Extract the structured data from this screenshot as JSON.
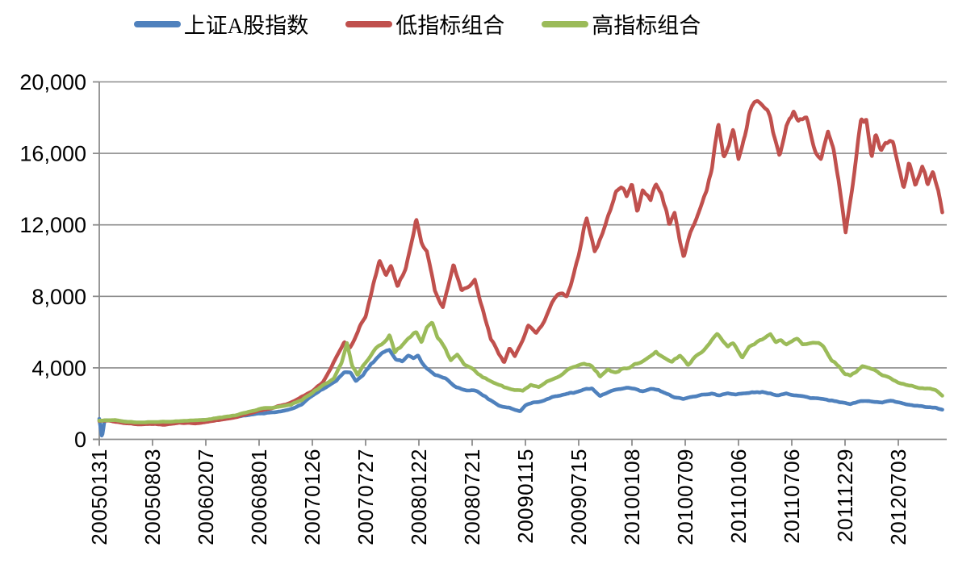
{
  "legend": {
    "items": [
      {
        "label": "上证A股指数",
        "color": "#4F81BD"
      },
      {
        "label": "低指标组合",
        "color": "#C0504D"
      },
      {
        "label": "高指标组合",
        "color": "#9BBB59"
      }
    ]
  },
  "colors": {
    "grid": "#8C8C8C",
    "axis": "#8C8C8C",
    "text": "#000000",
    "background": "#FFFFFF"
  },
  "chart_data": {
    "type": "line",
    "title": "",
    "grid": "horizontal",
    "legend_position": "top",
    "y_axis": {
      "range": [
        0,
        20000
      ],
      "ticks": [
        0,
        4000,
        8000,
        12000,
        16000,
        20000
      ],
      "tick_labels": [
        "0",
        "4,000",
        "8,000",
        "12,000",
        "16,000",
        "20,000"
      ]
    },
    "x_axis": {
      "tick_labels": [
        "20050131",
        "20050803",
        "20060207",
        "20060801",
        "20070126",
        "20070727",
        "20080122",
        "20080721",
        "20090115",
        "20090715",
        "20100108",
        "20100709",
        "20110106",
        "20110706",
        "20111229",
        "20120703"
      ],
      "unit_note": "series x values are in half-year tick units: 0 = 20050131, 15 = 20120703, data extends to ~15.83 (late 2012)"
    },
    "series": [
      {
        "name": "上证A股指数",
        "color": "#4F81BD",
        "points": [
          [
            0,
            1150
          ],
          [
            0.05,
            120
          ],
          [
            0.1,
            1060
          ],
          [
            0.3,
            1050
          ],
          [
            0.5,
            980
          ],
          [
            0.7,
            930
          ],
          [
            1,
            950
          ],
          [
            1.3,
            920
          ],
          [
            1.6,
            990
          ],
          [
            2,
            1080
          ],
          [
            2.4,
            1200
          ],
          [
            2.8,
            1350
          ],
          [
            3,
            1450
          ],
          [
            3.3,
            1500
          ],
          [
            3.6,
            1700
          ],
          [
            3.8,
            1950
          ],
          [
            4,
            2450
          ],
          [
            4.2,
            2800
          ],
          [
            4.45,
            3300
          ],
          [
            4.6,
            3750
          ],
          [
            4.72,
            3700
          ],
          [
            4.82,
            3250
          ],
          [
            4.95,
            3600
          ],
          [
            5.1,
            4200
          ],
          [
            5.3,
            4800
          ],
          [
            5.45,
            5050
          ],
          [
            5.57,
            4450
          ],
          [
            5.68,
            4350
          ],
          [
            5.8,
            4700
          ],
          [
            5.9,
            4550
          ],
          [
            5.98,
            4700
          ],
          [
            6.1,
            4100
          ],
          [
            6.3,
            3600
          ],
          [
            6.5,
            3400
          ],
          [
            6.7,
            2900
          ],
          [
            6.9,
            2750
          ],
          [
            7.1,
            2700
          ],
          [
            7.3,
            2250
          ],
          [
            7.5,
            1900
          ],
          [
            7.7,
            1750
          ],
          [
            7.9,
            1570
          ],
          [
            8,
            1900
          ],
          [
            8.15,
            2050
          ],
          [
            8.3,
            2150
          ],
          [
            8.5,
            2350
          ],
          [
            8.7,
            2500
          ],
          [
            8.9,
            2600
          ],
          [
            9.1,
            2800
          ],
          [
            9.25,
            2870
          ],
          [
            9.4,
            2450
          ],
          [
            9.6,
            2700
          ],
          [
            9.75,
            2800
          ],
          [
            9.9,
            2900
          ],
          [
            10.05,
            2800
          ],
          [
            10.2,
            2650
          ],
          [
            10.35,
            2820
          ],
          [
            10.5,
            2780
          ],
          [
            10.65,
            2550
          ],
          [
            10.8,
            2350
          ],
          [
            10.97,
            2250
          ],
          [
            11.15,
            2420
          ],
          [
            11.3,
            2470
          ],
          [
            11.5,
            2560
          ],
          [
            11.65,
            2480
          ],
          [
            11.8,
            2560
          ],
          [
            11.95,
            2500
          ],
          [
            12.1,
            2560
          ],
          [
            12.3,
            2660
          ],
          [
            12.45,
            2640
          ],
          [
            12.6,
            2540
          ],
          [
            12.75,
            2490
          ],
          [
            12.9,
            2550
          ],
          [
            13.05,
            2500
          ],
          [
            13.2,
            2440
          ],
          [
            13.35,
            2340
          ],
          [
            13.5,
            2300
          ],
          [
            13.65,
            2220
          ],
          [
            13.8,
            2150
          ],
          [
            13.95,
            2060
          ],
          [
            14.1,
            2000
          ],
          [
            14.25,
            2110
          ],
          [
            14.4,
            2160
          ],
          [
            14.55,
            2100
          ],
          [
            14.7,
            2060
          ],
          [
            14.85,
            2160
          ],
          [
            15,
            2060
          ],
          [
            15.15,
            1960
          ],
          [
            15.3,
            1880
          ],
          [
            15.45,
            1850
          ],
          [
            15.6,
            1800
          ],
          [
            15.72,
            1750
          ],
          [
            15.83,
            1660
          ]
        ]
      },
      {
        "name": "低指标组合",
        "color": "#C0504D",
        "points": [
          [
            0,
            1020
          ],
          [
            0.2,
            1040
          ],
          [
            0.5,
            900
          ],
          [
            0.8,
            830
          ],
          [
            1,
            870
          ],
          [
            1.2,
            820
          ],
          [
            1.5,
            930
          ],
          [
            1.8,
            900
          ],
          [
            2,
            960
          ],
          [
            2.3,
            1100
          ],
          [
            2.6,
            1270
          ],
          [
            3,
            1600
          ],
          [
            3.3,
            1800
          ],
          [
            3.5,
            1950
          ],
          [
            3.8,
            2350
          ],
          [
            4,
            2700
          ],
          [
            4.2,
            3200
          ],
          [
            4.45,
            4600
          ],
          [
            4.6,
            5400
          ],
          [
            4.7,
            5100
          ],
          [
            4.9,
            6300
          ],
          [
            5,
            6900
          ],
          [
            5.1,
            8200
          ],
          [
            5.26,
            10100
          ],
          [
            5.38,
            9200
          ],
          [
            5.48,
            9800
          ],
          [
            5.6,
            8600
          ],
          [
            5.75,
            9600
          ],
          [
            5.85,
            10900
          ],
          [
            5.95,
            12350
          ],
          [
            6.05,
            11000
          ],
          [
            6.15,
            10700
          ],
          [
            6.3,
            8300
          ],
          [
            6.45,
            7400
          ],
          [
            6.55,
            8600
          ],
          [
            6.65,
            9800
          ],
          [
            6.8,
            8300
          ],
          [
            6.95,
            8500
          ],
          [
            7.05,
            8900
          ],
          [
            7.2,
            7200
          ],
          [
            7.35,
            5600
          ],
          [
            7.5,
            4800
          ],
          [
            7.6,
            4350
          ],
          [
            7.7,
            5100
          ],
          [
            7.8,
            4700
          ],
          [
            7.95,
            5600
          ],
          [
            8.05,
            6400
          ],
          [
            8.2,
            5900
          ],
          [
            8.35,
            6600
          ],
          [
            8.5,
            7700
          ],
          [
            8.65,
            8300
          ],
          [
            8.78,
            8000
          ],
          [
            8.9,
            9100
          ],
          [
            9,
            10300
          ],
          [
            9.15,
            12400
          ],
          [
            9.3,
            10600
          ],
          [
            9.45,
            11600
          ],
          [
            9.6,
            12900
          ],
          [
            9.7,
            13800
          ],
          [
            9.8,
            14200
          ],
          [
            9.9,
            13700
          ],
          [
            10,
            14300
          ],
          [
            10.1,
            12800
          ],
          [
            10.2,
            13900
          ],
          [
            10.35,
            13500
          ],
          [
            10.45,
            14500
          ],
          [
            10.55,
            13800
          ],
          [
            10.7,
            12000
          ],
          [
            10.8,
            12600
          ],
          [
            10.97,
            10200
          ],
          [
            11.1,
            11600
          ],
          [
            11.25,
            12700
          ],
          [
            11.4,
            14100
          ],
          [
            11.5,
            15200
          ],
          [
            11.62,
            17700
          ],
          [
            11.72,
            15800
          ],
          [
            11.82,
            16400
          ],
          [
            11.9,
            17400
          ],
          [
            12,
            15700
          ],
          [
            12.12,
            16900
          ],
          [
            12.25,
            18600
          ],
          [
            12.35,
            19050
          ],
          [
            12.45,
            18800
          ],
          [
            12.55,
            18400
          ],
          [
            12.68,
            16800
          ],
          [
            12.77,
            15800
          ],
          [
            12.9,
            17500
          ],
          [
            13.03,
            18400
          ],
          [
            13.13,
            17600
          ],
          [
            13.28,
            17800
          ],
          [
            13.45,
            16100
          ],
          [
            13.55,
            15600
          ],
          [
            13.68,
            17300
          ],
          [
            13.78,
            16400
          ],
          [
            13.88,
            14600
          ],
          [
            14.01,
            11700
          ],
          [
            14.12,
            13800
          ],
          [
            14.3,
            18000
          ],
          [
            14.4,
            17600
          ],
          [
            14.5,
            15800
          ],
          [
            14.57,
            17200
          ],
          [
            14.68,
            16200
          ],
          [
            14.8,
            16700
          ],
          [
            14.9,
            16500
          ],
          [
            15,
            15200
          ],
          [
            15.1,
            14100
          ],
          [
            15.2,
            15700
          ],
          [
            15.32,
            14200
          ],
          [
            15.45,
            15400
          ],
          [
            15.55,
            14400
          ],
          [
            15.65,
            15200
          ],
          [
            15.75,
            14000
          ],
          [
            15.83,
            12500
          ]
        ]
      },
      {
        "name": "高指标组合",
        "color": "#9BBB59",
        "points": [
          [
            0,
            1050
          ],
          [
            0.3,
            1070
          ],
          [
            0.5,
            1000
          ],
          [
            0.8,
            950
          ],
          [
            1.1,
            970
          ],
          [
            1.4,
            1010
          ],
          [
            1.7,
            1050
          ],
          [
            2,
            1100
          ],
          [
            2.3,
            1230
          ],
          [
            2.6,
            1380
          ],
          [
            3,
            1700
          ],
          [
            3.3,
            1800
          ],
          [
            3.6,
            1950
          ],
          [
            3.8,
            2200
          ],
          [
            4,
            2600
          ],
          [
            4.2,
            3000
          ],
          [
            4.4,
            3400
          ],
          [
            4.55,
            4300
          ],
          [
            4.65,
            5350
          ],
          [
            4.75,
            4100
          ],
          [
            4.85,
            3600
          ],
          [
            4.95,
            4100
          ],
          [
            5.05,
            4500
          ],
          [
            5.2,
            5100
          ],
          [
            5.35,
            5400
          ],
          [
            5.45,
            5900
          ],
          [
            5.55,
            4900
          ],
          [
            5.7,
            5300
          ],
          [
            5.85,
            5800
          ],
          [
            5.95,
            6100
          ],
          [
            6.05,
            5500
          ],
          [
            6.15,
            6300
          ],
          [
            6.25,
            6550
          ],
          [
            6.35,
            5700
          ],
          [
            6.5,
            5000
          ],
          [
            6.6,
            4450
          ],
          [
            6.72,
            4750
          ],
          [
            6.85,
            4200
          ],
          [
            7,
            3950
          ],
          [
            7.2,
            3500
          ],
          [
            7.4,
            3200
          ],
          [
            7.6,
            2950
          ],
          [
            7.8,
            2750
          ],
          [
            7.95,
            2700
          ],
          [
            8.1,
            3000
          ],
          [
            8.25,
            2900
          ],
          [
            8.4,
            3200
          ],
          [
            8.6,
            3500
          ],
          [
            8.8,
            3900
          ],
          [
            9,
            4150
          ],
          [
            9.1,
            4300
          ],
          [
            9.25,
            4100
          ],
          [
            9.4,
            3500
          ],
          [
            9.55,
            3900
          ],
          [
            9.7,
            3750
          ],
          [
            9.85,
            3950
          ],
          [
            10,
            4100
          ],
          [
            10.15,
            4300
          ],
          [
            10.3,
            4550
          ],
          [
            10.45,
            4900
          ],
          [
            10.6,
            4600
          ],
          [
            10.75,
            4300
          ],
          [
            10.9,
            4700
          ],
          [
            11.05,
            4200
          ],
          [
            11.2,
            4600
          ],
          [
            11.35,
            5000
          ],
          [
            11.5,
            5500
          ],
          [
            11.6,
            5900
          ],
          [
            11.7,
            5550
          ],
          [
            11.8,
            5250
          ],
          [
            11.9,
            5450
          ],
          [
            12.07,
            4600
          ],
          [
            12.2,
            5100
          ],
          [
            12.35,
            5400
          ],
          [
            12.5,
            5700
          ],
          [
            12.6,
            5830
          ],
          [
            12.7,
            5400
          ],
          [
            12.8,
            5600
          ],
          [
            12.9,
            5350
          ],
          [
            13,
            5500
          ],
          [
            13.1,
            5600
          ],
          [
            13.2,
            5300
          ],
          [
            13.35,
            5450
          ],
          [
            13.5,
            5400
          ],
          [
            13.6,
            5100
          ],
          [
            13.75,
            4450
          ],
          [
            13.9,
            4000
          ],
          [
            14,
            3700
          ],
          [
            14.1,
            3600
          ],
          [
            14.2,
            3750
          ],
          [
            14.32,
            4150
          ],
          [
            14.42,
            4050
          ],
          [
            14.55,
            3900
          ],
          [
            14.7,
            3600
          ],
          [
            14.85,
            3400
          ],
          [
            15,
            3200
          ],
          [
            15.15,
            3050
          ],
          [
            15.3,
            2950
          ],
          [
            15.45,
            2850
          ],
          [
            15.6,
            2800
          ],
          [
            15.7,
            2750
          ],
          [
            15.83,
            2420
          ]
        ]
      }
    ]
  }
}
